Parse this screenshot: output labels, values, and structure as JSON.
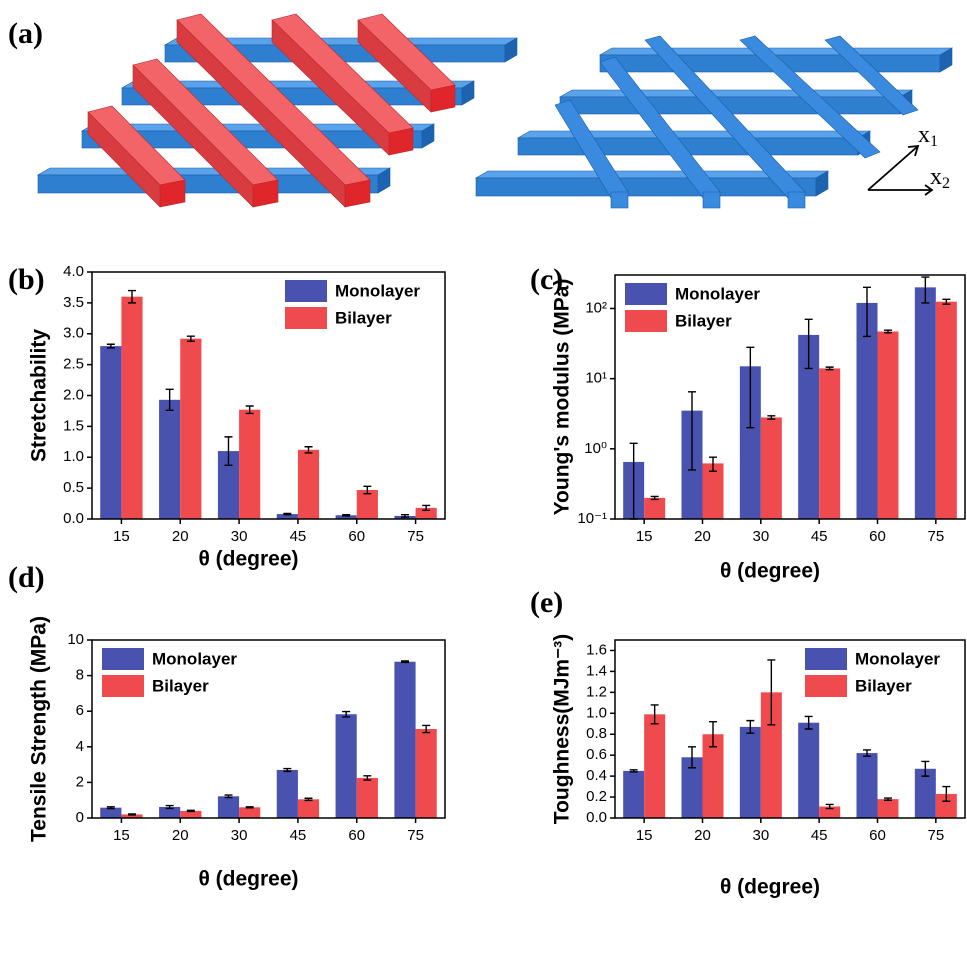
{
  "illustration": {
    "label": "(a)",
    "axis_labels": [
      {
        "letter": "x",
        "index": "1"
      },
      {
        "letter": "x",
        "index": "2"
      }
    ]
  },
  "chart_data": [
    {
      "type": "bar",
      "label": "(b)",
      "xlabel": "θ (degree)",
      "ylabel": "Stretchability",
      "categories": [
        "15",
        "20",
        "30",
        "45",
        "60",
        "75"
      ],
      "series": [
        {
          "name": "Monolayer",
          "color": "#4a52b0",
          "values": [
            2.8,
            1.93,
            1.1,
            0.08,
            0.06,
            0.05
          ],
          "errors": [
            0.03,
            0.17,
            0.23,
            0.01,
            0.01,
            0.02
          ]
        },
        {
          "name": "Bilayer",
          "color": "#ef4b4f",
          "values": [
            3.6,
            2.92,
            1.77,
            1.12,
            0.47,
            0.18
          ],
          "errors": [
            0.1,
            0.04,
            0.06,
            0.05,
            0.06,
            0.04
          ]
        }
      ],
      "ylim": [
        0,
        4
      ],
      "yticks": [
        {
          "value": 0,
          "label": "0.0"
        },
        0.5,
        {
          "value": 1,
          "label": "1.0"
        },
        1.5,
        {
          "value": 2,
          "label": "2.0"
        },
        2.5,
        {
          "value": 3,
          "label": "3.0"
        },
        3.5,
        {
          "value": 4,
          "label": "4.0"
        }
      ],
      "legend": "upper right"
    },
    {
      "type": "bar",
      "label": "(c)",
      "xlabel": "θ (degree)",
      "ylabel": "Young's modulus (MPa)",
      "categories": [
        "15",
        "20",
        "30",
        "45",
        "60",
        "75"
      ],
      "series": [
        {
          "name": "Monolayer",
          "color": "#4a52b0",
          "values": [
            0.65,
            3.5,
            15,
            42,
            120,
            200
          ],
          "errors": [
            0.55,
            3.0,
            13,
            28,
            80,
            80
          ]
        },
        {
          "name": "Bilayer",
          "color": "#ef4b4f",
          "values": [
            0.2,
            0.62,
            2.8,
            14,
            47,
            125
          ],
          "errors": [
            0.01,
            0.14,
            0.15,
            0.6,
            2,
            10
          ]
        }
      ],
      "log_scale": true,
      "ylim": [
        0.1,
        300
      ],
      "yticks": [
        {
          "value": 0.1,
          "label": "10⁻¹"
        },
        {
          "value": 1,
          "label": "10⁰"
        },
        {
          "value": 10,
          "label": "10¹"
        },
        {
          "value": 100,
          "label": "10²"
        }
      ],
      "legend": "upper left"
    },
    {
      "type": "bar",
      "label": "(d)",
      "xlabel": "θ (degree)",
      "ylabel": "Tensile Strength (MPa)",
      "categories": [
        "15",
        "20",
        "30",
        "45",
        "60",
        "75"
      ],
      "series": [
        {
          "name": "Monolayer",
          "color": "#4a52b0",
          "values": [
            0.58,
            0.62,
            1.22,
            2.7,
            5.83,
            8.78
          ],
          "errors": [
            0.05,
            0.08,
            0.07,
            0.08,
            0.15,
            0.04
          ]
        },
        {
          "name": "Bilayer",
          "color": "#ef4b4f",
          "values": [
            0.2,
            0.4,
            0.6,
            1.05,
            2.25,
            5.0
          ],
          "errors": [
            0.03,
            0.03,
            0.03,
            0.06,
            0.12,
            0.2
          ]
        }
      ],
      "ylim": [
        0,
        10
      ],
      "yticks": [
        0,
        2,
        4,
        6,
        8,
        10
      ],
      "legend": "upper left"
    },
    {
      "type": "bar",
      "label": "(e)",
      "xlabel": "θ (degree)",
      "ylabel": "Toughness(MJm⁻³)",
      "categories": [
        "15",
        "20",
        "30",
        "45",
        "60",
        "75"
      ],
      "series": [
        {
          "name": "Monolayer",
          "color": "#4a52b0",
          "values": [
            0.45,
            0.58,
            0.87,
            0.91,
            0.62,
            0.47
          ],
          "errors": [
            0.01,
            0.1,
            0.06,
            0.06,
            0.03,
            0.07
          ]
        },
        {
          "name": "Bilayer",
          "color": "#ef4b4f",
          "values": [
            0.99,
            0.8,
            1.2,
            0.11,
            0.18,
            0.23
          ],
          "errors": [
            0.09,
            0.12,
            0.31,
            0.02,
            0.01,
            0.07
          ]
        }
      ],
      "ylim": [
        0,
        1.7
      ],
      "yticks": [
        {
          "value": 0,
          "label": "0.0"
        },
        0.2,
        0.4,
        0.6,
        0.8,
        {
          "value": 1,
          "label": "1.0"
        },
        1.2,
        1.4,
        1.6
      ],
      "legend": "upper right"
    }
  ]
}
